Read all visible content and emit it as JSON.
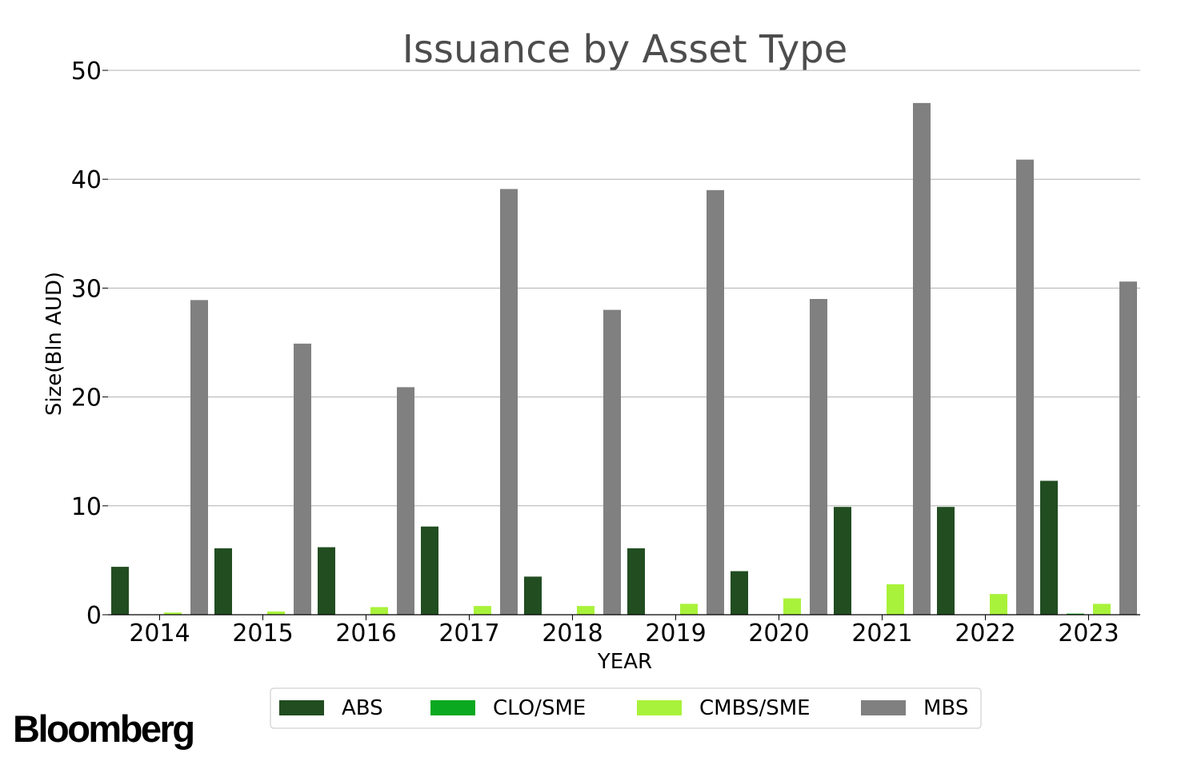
{
  "chart_data": {
    "type": "bar",
    "title": "Issuance by Asset Type",
    "xlabel": "YEAR",
    "ylabel": "Size(Bln AUD)",
    "categories": [
      "2014",
      "2015",
      "2016",
      "2017",
      "2018",
      "2019",
      "2020",
      "2021",
      "2022",
      "2023"
    ],
    "ylim": [
      0,
      50
    ],
    "yticks": [
      0,
      10,
      20,
      30,
      40,
      50
    ],
    "grid": "horizontal",
    "legend_position": "bottom",
    "series": [
      {
        "name": "ABS",
        "color": "#214d21",
        "values": [
          4.4,
          6.1,
          6.2,
          8.1,
          3.5,
          6.1,
          4.0,
          9.9,
          9.9,
          12.3
        ]
      },
      {
        "name": "CLO/SME",
        "color": "#0aa91f",
        "values": [
          0,
          0,
          0,
          0,
          0,
          0,
          0,
          0,
          0,
          0.1
        ]
      },
      {
        "name": "CMBS/SME",
        "color": "#a9f23b",
        "values": [
          0.2,
          0.3,
          0.7,
          0.8,
          0.8,
          1.0,
          1.5,
          2.8,
          1.9,
          1.0
        ]
      },
      {
        "name": "MBS",
        "color": "#808080",
        "values": [
          28.9,
          24.9,
          20.9,
          39.1,
          28.0,
          39.0,
          29.0,
          47.0,
          41.8,
          30.6
        ]
      }
    ]
  },
  "branding": {
    "logo_text": "Bloomberg"
  }
}
